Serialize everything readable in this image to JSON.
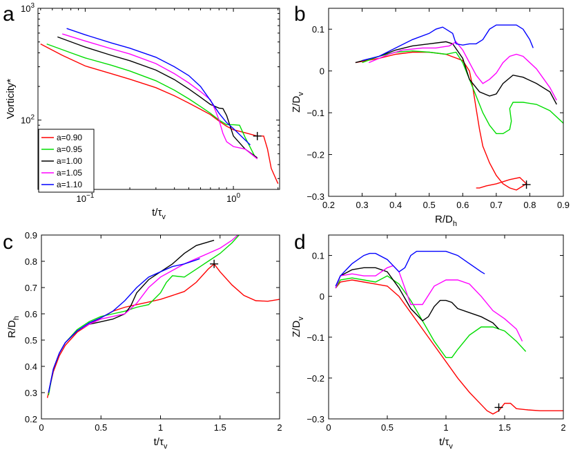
{
  "figure": {
    "panel_labels": [
      "a",
      "b",
      "c",
      "d"
    ]
  },
  "series_styles": [
    {
      "name": "a=0.90",
      "color": "#ff0000"
    },
    {
      "name": "a=0.95",
      "color": "#00dd00"
    },
    {
      "name": "a=1.00",
      "color": "#000000"
    },
    {
      "name": "a=1.05",
      "color": "#ff00ff"
    },
    {
      "name": "a=1.10",
      "color": "#0000ff"
    }
  ],
  "chart_data": [
    {
      "panel": "a",
      "type": "line",
      "xlabel": "t/τ",
      "xlabel_sub": "v",
      "ylabel": "Vorticity*",
      "xscale": "log",
      "yscale": "log",
      "xlim": [
        0.048,
        2.05
      ],
      "ylim": [
        24,
        1000
      ],
      "xticks": [
        {
          "v": 0.1,
          "m": "10",
          "e": "−1"
        },
        {
          "v": 1,
          "m": "10",
          "e": "0"
        }
      ],
      "yticks": [
        {
          "v": 100,
          "m": "10",
          "e": "2"
        },
        {
          "v": 1000,
          "m": "10",
          "e": "3"
        }
      ],
      "legend": {
        "position": "lower-left",
        "entries": [
          "a=0.90",
          "a=0.95",
          "a=1.00",
          "a=1.05",
          "a=1.10"
        ]
      },
      "series": [
        {
          "name": "a=0.90",
          "x": [
            0.05,
            0.07,
            0.1,
            0.15,
            0.2,
            0.3,
            0.4,
            0.5,
            0.6,
            0.7,
            0.8,
            0.9,
            1.0,
            1.2,
            1.45,
            1.6,
            1.7,
            1.8,
            2.0
          ],
          "y": [
            480,
            380,
            305,
            260,
            232,
            195,
            165,
            142,
            125,
            112,
            98,
            88,
            82,
            77,
            72,
            72,
            55,
            37,
            27
          ]
        },
        {
          "name": "a=0.95",
          "x": [
            0.055,
            0.08,
            0.1,
            0.15,
            0.2,
            0.3,
            0.4,
            0.5,
            0.6,
            0.7,
            0.8,
            0.9,
            1.0,
            1.1,
            1.2,
            1.4,
            1.45
          ],
          "y": [
            480,
            400,
            360,
            310,
            275,
            225,
            185,
            155,
            132,
            115,
            100,
            91,
            91,
            90,
            70,
            47,
            45
          ]
        },
        {
          "name": "a=1.00",
          "x": [
            0.065,
            0.1,
            0.15,
            0.2,
            0.3,
            0.4,
            0.5,
            0.6,
            0.7,
            0.8,
            0.85,
            0.9,
            1.0,
            1.2,
            1.45
          ],
          "y": [
            555,
            450,
            380,
            340,
            280,
            230,
            190,
            160,
            138,
            128,
            127,
            110,
            72,
            55,
            46
          ]
        },
        {
          "name": "a=1.05",
          "x": [
            0.07,
            0.1,
            0.15,
            0.2,
            0.3,
            0.4,
            0.5,
            0.6,
            0.7,
            0.75,
            0.8,
            0.85,
            0.9,
            1.0,
            1.2,
            1.45
          ],
          "y": [
            590,
            510,
            435,
            390,
            320,
            260,
            215,
            180,
            152,
            125,
            100,
            76,
            64,
            58,
            55,
            45
          ]
        },
        {
          "name": "a=1.10",
          "x": [
            0.075,
            0.1,
            0.15,
            0.2,
            0.3,
            0.4,
            0.5,
            0.6,
            0.7,
            0.8,
            0.9,
            1.0,
            1.3
          ],
          "y": [
            660,
            580,
            490,
            440,
            365,
            300,
            250,
            200,
            150,
            115,
            95,
            84,
            60
          ]
        }
      ],
      "markers": [
        {
          "x": 1.45,
          "y": 72
        }
      ]
    },
    {
      "panel": "b",
      "type": "line",
      "xlabel": "R/D",
      "xlabel_sub": "h",
      "ylabel": "Z/D",
      "ylabel_sub": "v",
      "xlim": [
        0.2,
        0.9
      ],
      "ylim": [
        -0.3,
        0.15
      ],
      "xticks": [
        0.2,
        0.3,
        0.4,
        0.5,
        0.6,
        0.7,
        0.8,
        0.9
      ],
      "yticks": [
        -0.3,
        -0.2,
        -0.1,
        0,
        0.1
      ],
      "series": [
        {
          "name": "a=0.90",
          "x": [
            0.28,
            0.35,
            0.4,
            0.45,
            0.5,
            0.55,
            0.6,
            0.62,
            0.63,
            0.64,
            0.65,
            0.66,
            0.67,
            0.68,
            0.7,
            0.72,
            0.74,
            0.76,
            0.78,
            0.79,
            0.77,
            0.74,
            0.7,
            0.67,
            0.65,
            0.64
          ],
          "y": [
            0.02,
            0.03,
            0.04,
            0.045,
            0.045,
            0.04,
            0.025,
            0,
            -0.04,
            -0.09,
            -0.14,
            -0.18,
            -0.2,
            -0.22,
            -0.25,
            -0.27,
            -0.28,
            -0.285,
            -0.275,
            -0.27,
            -0.255,
            -0.26,
            -0.27,
            -0.275,
            -0.28,
            -0.28
          ]
        },
        {
          "name": "a=0.95",
          "x": [
            0.3,
            0.35,
            0.4,
            0.45,
            0.5,
            0.55,
            0.58,
            0.6,
            0.62,
            0.64,
            0.66,
            0.68,
            0.7,
            0.72,
            0.74,
            0.745,
            0.74,
            0.75,
            0.78,
            0.82,
            0.86,
            0.9
          ],
          "y": [
            0.02,
            0.035,
            0.045,
            0.048,
            0.045,
            0.04,
            0.045,
            0.02,
            -0.02,
            -0.06,
            -0.1,
            -0.13,
            -0.15,
            -0.15,
            -0.14,
            -0.12,
            -0.09,
            -0.075,
            -0.075,
            -0.08,
            -0.095,
            -0.125
          ]
        },
        {
          "name": "a=1.00",
          "x": [
            0.28,
            0.35,
            0.4,
            0.45,
            0.5,
            0.55,
            0.57,
            0.6,
            0.62,
            0.65,
            0.68,
            0.7,
            0.72,
            0.75,
            0.78,
            0.82,
            0.86,
            0.88
          ],
          "y": [
            0.02,
            0.035,
            0.05,
            0.06,
            0.065,
            0.07,
            0.065,
            0.03,
            -0.02,
            -0.05,
            -0.06,
            -0.055,
            -0.03,
            -0.01,
            -0.015,
            -0.03,
            -0.05,
            -0.08
          ]
        },
        {
          "name": "a=1.05",
          "x": [
            0.32,
            0.38,
            0.42,
            0.48,
            0.52,
            0.56,
            0.58,
            0.6,
            0.62,
            0.64,
            0.66,
            0.68,
            0.7,
            0.72,
            0.74,
            0.76,
            0.78,
            0.82,
            0.86,
            0.88
          ],
          "y": [
            0.02,
            0.04,
            0.05,
            0.055,
            0.055,
            0.06,
            0.07,
            0.05,
            0.02,
            -0.01,
            -0.03,
            -0.02,
            -0.005,
            0.02,
            0.035,
            0.04,
            0.035,
            0.005,
            -0.04,
            -0.07
          ]
        },
        {
          "name": "a=1.10",
          "x": [
            0.3,
            0.35,
            0.4,
            0.45,
            0.5,
            0.52,
            0.54,
            0.55,
            0.57,
            0.58,
            0.6,
            0.62,
            0.64,
            0.66,
            0.68,
            0.7,
            0.74,
            0.76,
            0.78,
            0.8,
            0.81
          ],
          "y": [
            0.025,
            0.035,
            0.055,
            0.075,
            0.09,
            0.1,
            0.105,
            0.1,
            0.09,
            0.065,
            0.062,
            0.065,
            0.065,
            0.075,
            0.1,
            0.11,
            0.11,
            0.11,
            0.1,
            0.075,
            0.055
          ]
        }
      ],
      "markers": [
        {
          "x": 0.79,
          "y": -0.272
        }
      ]
    },
    {
      "panel": "c",
      "type": "line",
      "xlabel": "t/τ",
      "xlabel_sub": "v",
      "ylabel": "R/D",
      "ylabel_sub": "h",
      "xlim": [
        0,
        2
      ],
      "ylim": [
        0.2,
        0.9
      ],
      "xticks": [
        0,
        0.5,
        1,
        1.5,
        2
      ],
      "yticks": [
        0.2,
        0.3,
        0.4,
        0.5,
        0.6,
        0.7,
        0.8,
        0.9
      ],
      "series": [
        {
          "name": "a=0.90",
          "x": [
            0.05,
            0.1,
            0.15,
            0.2,
            0.3,
            0.4,
            0.5,
            0.6,
            0.7,
            0.8,
            0.9,
            1.0,
            1.1,
            1.2,
            1.3,
            1.4,
            1.45,
            1.5,
            1.6,
            1.7,
            1.8,
            1.9,
            2.0
          ],
          "y": [
            0.28,
            0.38,
            0.44,
            0.48,
            0.53,
            0.56,
            0.585,
            0.61,
            0.625,
            0.635,
            0.645,
            0.655,
            0.67,
            0.685,
            0.72,
            0.77,
            0.79,
            0.76,
            0.71,
            0.67,
            0.65,
            0.648,
            0.655
          ]
        },
        {
          "name": "a=0.95",
          "x": [
            0.06,
            0.1,
            0.15,
            0.2,
            0.3,
            0.4,
            0.5,
            0.6,
            0.7,
            0.8,
            0.9,
            1.0,
            1.05,
            1.1,
            1.2,
            1.3,
            1.4,
            1.5,
            1.6,
            1.66
          ],
          "y": [
            0.29,
            0.39,
            0.45,
            0.49,
            0.54,
            0.57,
            0.59,
            0.6,
            0.61,
            0.625,
            0.635,
            0.68,
            0.72,
            0.745,
            0.74,
            0.77,
            0.8,
            0.83,
            0.87,
            0.9
          ]
        },
        {
          "name": "a=1.00",
          "x": [
            0.06,
            0.1,
            0.15,
            0.2,
            0.3,
            0.4,
            0.5,
            0.6,
            0.7,
            0.75,
            0.8,
            0.9,
            1.0,
            1.1,
            1.2,
            1.3,
            1.45
          ],
          "y": [
            0.3,
            0.39,
            0.45,
            0.49,
            0.535,
            0.56,
            0.57,
            0.58,
            0.6,
            0.63,
            0.68,
            0.73,
            0.76,
            0.79,
            0.83,
            0.86,
            0.88
          ]
        },
        {
          "name": "a=1.05",
          "x": [
            0.06,
            0.1,
            0.15,
            0.2,
            0.3,
            0.4,
            0.5,
            0.6,
            0.7,
            0.8,
            0.9,
            1.0,
            1.1,
            1.2,
            1.3,
            1.4,
            1.5,
            1.6,
            1.65
          ],
          "y": [
            0.3,
            0.39,
            0.45,
            0.49,
            0.535,
            0.56,
            0.58,
            0.59,
            0.6,
            0.64,
            0.7,
            0.74,
            0.765,
            0.79,
            0.81,
            0.83,
            0.85,
            0.88,
            0.9
          ]
        },
        {
          "name": "a=1.10",
          "x": [
            0.06,
            0.1,
            0.15,
            0.2,
            0.3,
            0.4,
            0.5,
            0.6,
            0.7,
            0.8,
            0.9,
            1.0,
            1.1,
            1.2,
            1.3,
            1.33
          ],
          "y": [
            0.3,
            0.39,
            0.45,
            0.49,
            0.535,
            0.565,
            0.585,
            0.61,
            0.65,
            0.7,
            0.74,
            0.76,
            0.78,
            0.79,
            0.805,
            0.81
          ]
        }
      ],
      "markers": [
        {
          "x": 1.45,
          "y": 0.79
        }
      ]
    },
    {
      "panel": "d",
      "type": "line",
      "xlabel": "t/τ",
      "xlabel_sub": "v",
      "ylabel": "Z/D",
      "ylabel_sub": "v",
      "xlim": [
        0,
        2
      ],
      "ylim": [
        -0.3,
        0.15
      ],
      "xticks": [
        0,
        0.5,
        1,
        1.5,
        2
      ],
      "yticks": [
        -0.3,
        -0.2,
        -0.1,
        0,
        0.1
      ],
      "series": [
        {
          "name": "a=0.90",
          "x": [
            0.06,
            0.1,
            0.2,
            0.3,
            0.4,
            0.5,
            0.6,
            0.7,
            0.8,
            0.9,
            1.0,
            1.1,
            1.2,
            1.3,
            1.35,
            1.4,
            1.45,
            1.5,
            1.55,
            1.6,
            1.7,
            1.8,
            1.9,
            2.0
          ],
          "y": [
            0.02,
            0.035,
            0.04,
            0.035,
            0.03,
            0.025,
            0.0,
            -0.04,
            -0.08,
            -0.12,
            -0.16,
            -0.2,
            -0.235,
            -0.265,
            -0.28,
            -0.288,
            -0.28,
            -0.262,
            -0.262,
            -0.275,
            -0.278,
            -0.28,
            -0.28,
            -0.28
          ]
        },
        {
          "name": "a=0.95",
          "x": [
            0.06,
            0.1,
            0.2,
            0.3,
            0.4,
            0.5,
            0.6,
            0.7,
            0.8,
            0.9,
            1.0,
            1.05,
            1.1,
            1.2,
            1.3,
            1.4,
            1.5,
            1.6,
            1.68
          ],
          "y": [
            0.02,
            0.04,
            0.045,
            0.04,
            0.035,
            0.05,
            0.03,
            -0.01,
            -0.06,
            -0.11,
            -0.15,
            -0.15,
            -0.13,
            -0.095,
            -0.075,
            -0.075,
            -0.085,
            -0.11,
            -0.135
          ]
        },
        {
          "name": "a=1.00",
          "x": [
            0.06,
            0.1,
            0.2,
            0.3,
            0.4,
            0.5,
            0.6,
            0.7,
            0.8,
            0.85,
            0.9,
            0.95,
            1.0,
            1.05,
            1.1,
            1.2,
            1.3,
            1.4,
            1.45
          ],
          "y": [
            0.02,
            0.05,
            0.065,
            0.07,
            0.07,
            0.06,
            0.02,
            -0.03,
            -0.06,
            -0.05,
            -0.025,
            -0.01,
            -0.01,
            -0.015,
            -0.03,
            -0.04,
            -0.05,
            -0.065,
            -0.08
          ]
        },
        {
          "name": "a=1.05",
          "x": [
            0.06,
            0.1,
            0.2,
            0.3,
            0.4,
            0.5,
            0.55,
            0.6,
            0.7,
            0.8,
            0.9,
            1.0,
            1.1,
            1.2,
            1.3,
            1.4,
            1.5,
            1.6,
            1.65
          ],
          "y": [
            0.02,
            0.05,
            0.055,
            0.05,
            0.05,
            0.07,
            0.075,
            0.06,
            -0.02,
            -0.02,
            0.025,
            0.04,
            0.04,
            0.03,
            0.0,
            -0.035,
            -0.055,
            -0.08,
            -0.11
          ]
        },
        {
          "name": "a=1.10",
          "x": [
            0.06,
            0.1,
            0.2,
            0.3,
            0.35,
            0.4,
            0.5,
            0.55,
            0.6,
            0.65,
            0.7,
            0.75,
            0.8,
            0.9,
            1.0,
            1.1,
            1.2,
            1.3,
            1.33
          ],
          "y": [
            0.025,
            0.05,
            0.08,
            0.1,
            0.105,
            0.105,
            0.09,
            0.075,
            0.06,
            0.07,
            0.1,
            0.11,
            0.11,
            0.11,
            0.11,
            0.1,
            0.08,
            0.06,
            0.055
          ]
        }
      ],
      "markers": [
        {
          "x": 1.45,
          "y": -0.272
        }
      ]
    }
  ]
}
